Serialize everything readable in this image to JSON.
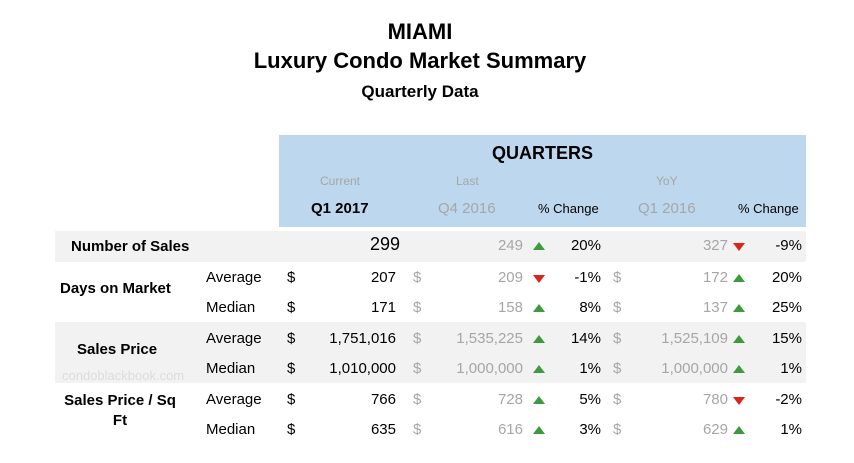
{
  "title": {
    "city": "MIAMI",
    "name": "Luxury Condo Market Summary",
    "subtitle": "Quarterly Data"
  },
  "header": {
    "group": "QUARTERS",
    "current_label": "Current",
    "last_label": "Last",
    "yoy_label": "YoY",
    "current_quarter": "Q1 2017",
    "last_quarter": "Q4 2016",
    "yoy_quarter": "Q1 2016",
    "change_label": "% Change"
  },
  "watermark": "condoblackbook.com",
  "sections": {
    "sales_count": {
      "label": "Number of Sales"
    },
    "days_on_market": {
      "label": "Days on Market"
    },
    "sales_price": {
      "label": "Sales Price"
    },
    "price_sqft": {
      "label": "Sales Price / Sq Ft"
    }
  },
  "rows": [
    {
      "section": "Number of Sales",
      "metric": "",
      "current": "299",
      "last": "249",
      "last_change": "20%",
      "last_trend": "up",
      "yoy": "327",
      "yoy_change": "-9%",
      "yoy_trend": "down",
      "currency": false
    },
    {
      "section": "Days on Market",
      "metric": "Average",
      "current": "207",
      "last": "209",
      "last_change": "-1%",
      "last_trend": "down",
      "yoy": "172",
      "yoy_change": "20%",
      "yoy_trend": "up",
      "currency": true
    },
    {
      "section": "Days on Market",
      "metric": "Median",
      "current": "171",
      "last": "158",
      "last_change": "8%",
      "last_trend": "up",
      "yoy": "137",
      "yoy_change": "25%",
      "yoy_trend": "up",
      "currency": true
    },
    {
      "section": "Sales Price",
      "metric": "Average",
      "current": "1,751,016",
      "last": "1,535,225",
      "last_change": "14%",
      "last_trend": "up",
      "yoy": "1,525,109",
      "yoy_change": "15%",
      "yoy_trend": "up",
      "currency": true
    },
    {
      "section": "Sales Price",
      "metric": "Median",
      "current": "1,010,000",
      "last": "1,000,000",
      "last_change": "1%",
      "last_trend": "up",
      "yoy": "1,000,000",
      "yoy_change": "1%",
      "yoy_trend": "up",
      "currency": true
    },
    {
      "section": "Sales Price / Sq Ft",
      "metric": "Average",
      "current": "766",
      "last": "728",
      "last_change": "5%",
      "last_trend": "up",
      "yoy": "780",
      "yoy_change": "-2%",
      "yoy_trend": "down",
      "currency": true
    },
    {
      "section": "Sales Price / Sq Ft",
      "metric": "Median",
      "current": "635",
      "last": "616",
      "last_change": "3%",
      "last_trend": "up",
      "yoy": "629",
      "yoy_change": "1%",
      "yoy_trend": "up",
      "currency": true
    }
  ],
  "currency_symbol": "$",
  "colors": {
    "header_bg": "#bdd7ee",
    "band_bg": "#f2f2f2",
    "up": "#3d9a3d",
    "down": "#d9261c",
    "muted": "#a6a6a6"
  }
}
